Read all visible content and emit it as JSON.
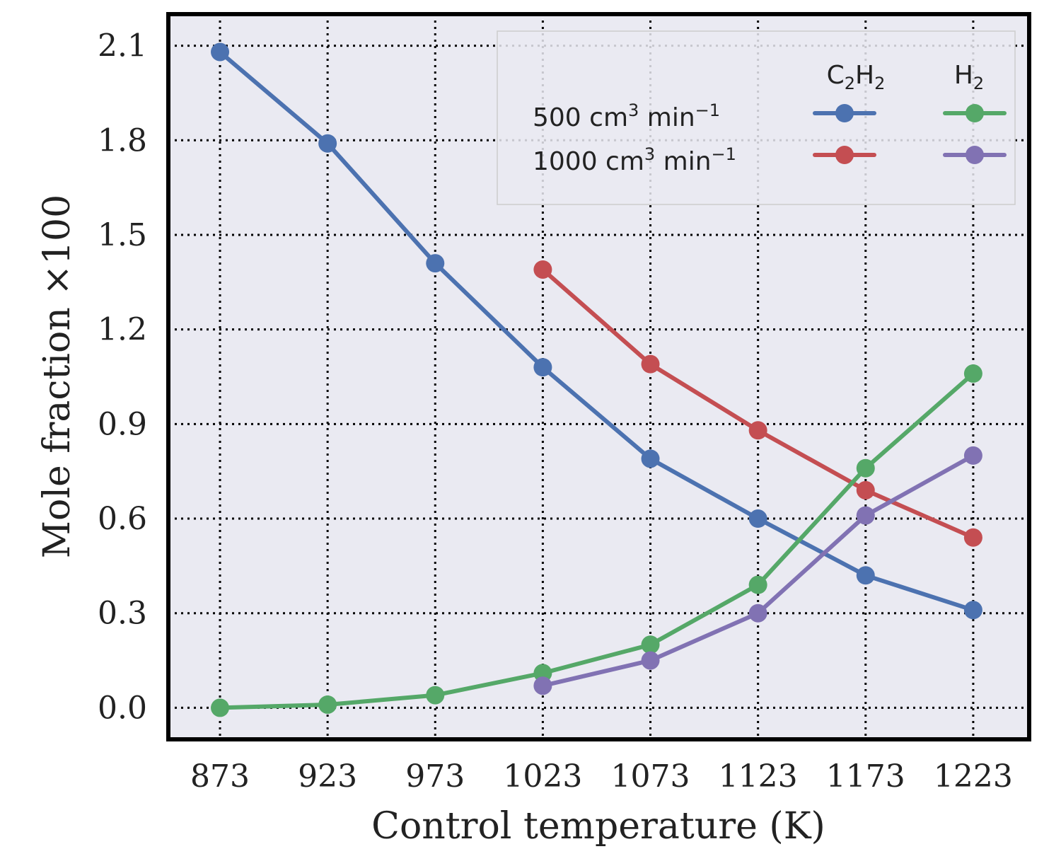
{
  "chart_data": {
    "type": "line",
    "title": "",
    "xlabel": "Control temperature (K)",
    "ylabel": "Mole fraction ×100",
    "x_ticks": [
      873,
      923,
      973,
      1023,
      1073,
      1123,
      1173,
      1223
    ],
    "y_ticks": [
      "0.0",
      "0.3",
      "0.6",
      "0.9",
      "1.2",
      "1.5",
      "1.8",
      "2.1"
    ],
    "xlim": [
      849,
      1249
    ],
    "ylim": [
      -0.1,
      2.2
    ],
    "grid": true,
    "legend_position": "top-right",
    "legend": {
      "column_headers": [
        {
          "base": "C",
          "sub1": "2",
          "mid": "H",
          "sub2": "2"
        },
        {
          "base": "H",
          "sub1": "2",
          "mid": "",
          "sub2": ""
        }
      ],
      "row_labels": [
        {
          "pre": "500 cm",
          "sup1": "3",
          "mid": " min",
          "sup2": "−1"
        },
        {
          "pre": "1000 cm",
          "sup1": "3",
          "mid": " min",
          "sup2": "−1"
        }
      ]
    },
    "series": [
      {
        "species": "C2H2",
        "flow": "500",
        "color": "#4c72b0",
        "x": [
          873,
          923,
          973,
          1023,
          1073,
          1123,
          1173,
          1223
        ],
        "y": [
          2.08,
          1.79,
          1.41,
          1.08,
          0.79,
          0.6,
          0.42,
          0.31
        ]
      },
      {
        "species": "C2H2",
        "flow": "1000",
        "color": "#c44e52",
        "x": [
          1023,
          1073,
          1123,
          1173,
          1223
        ],
        "y": [
          1.39,
          1.09,
          0.88,
          0.69,
          0.54
        ]
      },
      {
        "species": "H2",
        "flow": "500",
        "color": "#55a868",
        "x": [
          873,
          923,
          973,
          1023,
          1073,
          1123,
          1173,
          1223
        ],
        "y": [
          0.0,
          0.01,
          0.04,
          0.11,
          0.2,
          0.39,
          0.76,
          1.06
        ]
      },
      {
        "species": "H2",
        "flow": "1000",
        "color": "#8172b3",
        "x": [
          1023,
          1073,
          1123,
          1173,
          1223
        ],
        "y": [
          0.07,
          0.15,
          0.3,
          0.61,
          0.8
        ]
      }
    ]
  }
}
